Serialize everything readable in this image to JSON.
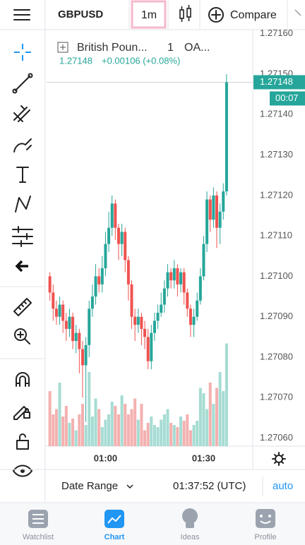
{
  "toolbar": {
    "symbol": "GBPUSD",
    "interval": "1m",
    "compare": "Compare"
  },
  "chart_data": {
    "type": "candlestick",
    "symbol_name": "British Poun...",
    "legend_interval": "1",
    "exchange": "OA...",
    "change": "+0.00106 (+0.08%)",
    "last_price": 1.27148,
    "countdown": "00:07",
    "up_color": "#26a69a",
    "down_color": "#ef5350",
    "up_volume_color": "#a6dcd3",
    "down_volume_color": "#f3b1b0",
    "grid": false,
    "x": [
      43,
      44,
      45,
      46,
      47,
      48,
      49,
      50,
      51,
      52,
      53,
      54,
      55,
      56,
      57,
      58,
      59,
      60,
      61,
      62,
      63,
      64,
      65,
      66,
      67,
      68,
      69,
      70,
      71,
      72,
      73,
      74,
      75,
      76,
      77,
      78,
      79,
      80,
      81,
      82,
      83,
      84,
      85,
      86,
      87,
      88,
      89,
      90,
      91,
      92,
      93,
      94,
      95,
      96,
      97
    ],
    "open": [
      1.271,
      1.27096,
      1.27092,
      1.2709,
      1.27093,
      1.27089,
      1.27087,
      1.2709,
      1.27084,
      1.27086,
      1.27082,
      1.27078,
      1.27083,
      1.27092,
      1.27095,
      1.271,
      1.27098,
      1.27102,
      1.27108,
      1.27112,
      1.27118,
      1.27112,
      1.27108,
      1.27111,
      1.27104,
      1.27098,
      1.2709,
      1.27088,
      1.2709,
      1.27087,
      1.27085,
      1.27079,
      1.27086,
      1.27089,
      1.27091,
      1.27093,
      1.27097,
      1.27101,
      1.27099,
      1.27102,
      1.27098,
      1.27101,
      1.27096,
      1.27092,
      1.27088,
      1.2709,
      1.27094,
      1.271,
      1.27108,
      1.27119,
      1.27114,
      1.2712,
      1.27112,
      1.27116,
      1.27121
    ],
    "high": [
      1.27101,
      1.27098,
      1.27094,
      1.27095,
      1.27094,
      1.27091,
      1.27092,
      1.27091,
      1.27088,
      1.27087,
      1.27084,
      1.27085,
      1.27094,
      1.27098,
      1.27103,
      1.27102,
      1.27105,
      1.27111,
      1.27116,
      1.2712,
      1.27119,
      1.27113,
      1.27113,
      1.27112,
      1.27105,
      1.27099,
      1.27092,
      1.27092,
      1.27091,
      1.27089,
      1.27087,
      1.27088,
      1.27091,
      1.27093,
      1.27096,
      1.27099,
      1.27103,
      1.27102,
      1.27104,
      1.27103,
      1.27102,
      1.27102,
      1.27097,
      1.27093,
      1.27092,
      1.27096,
      1.27102,
      1.2711,
      1.27121,
      1.2712,
      1.27122,
      1.27121,
      1.27118,
      1.27123,
      1.2715
    ],
    "low": [
      1.27094,
      1.27089,
      1.27088,
      1.27088,
      1.27086,
      1.27084,
      1.27085,
      1.27082,
      1.27081,
      1.27076,
      1.2707,
      1.27064,
      1.2708,
      1.2709,
      1.27093,
      1.27096,
      1.27096,
      1.271,
      1.27106,
      1.2711,
      1.27109,
      1.27104,
      1.27105,
      1.27101,
      1.27094,
      1.27087,
      1.27084,
      1.27086,
      1.27083,
      1.27082,
      1.27077,
      1.27077,
      1.27084,
      1.27087,
      1.2709,
      1.27091,
      1.27095,
      1.27097,
      1.27097,
      1.27095,
      1.27096,
      1.27093,
      1.2709,
      1.27085,
      1.27085,
      1.27089,
      1.27093,
      1.27099,
      1.27106,
      1.27111,
      1.27112,
      1.27107,
      1.27108,
      1.27114,
      1.2712
    ],
    "close": [
      1.27096,
      1.27092,
      1.2709,
      1.27093,
      1.27089,
      1.27087,
      1.2709,
      1.27084,
      1.27086,
      1.27082,
      1.27078,
      1.27083,
      1.27092,
      1.27095,
      1.271,
      1.27098,
      1.27102,
      1.27108,
      1.27112,
      1.27118,
      1.27112,
      1.27108,
      1.27111,
      1.27104,
      1.27098,
      1.2709,
      1.27088,
      1.2709,
      1.27087,
      1.27085,
      1.27079,
      1.27086,
      1.27089,
      1.27091,
      1.27093,
      1.27097,
      1.27101,
      1.27099,
      1.27102,
      1.27098,
      1.27101,
      1.27096,
      1.27092,
      1.27088,
      1.2709,
      1.27094,
      1.271,
      1.27108,
      1.27119,
      1.27114,
      1.2712,
      1.27112,
      1.27116,
      1.27121,
      1.27148
    ],
    "volume": [
      52,
      30,
      35,
      60,
      28,
      38,
      22,
      26,
      15,
      30,
      40,
      20,
      70,
      28,
      45,
      35,
      18,
      25,
      30,
      42,
      38,
      30,
      48,
      40,
      30,
      35,
      45,
      25,
      40,
      15,
      22,
      28,
      20,
      18,
      25,
      30,
      35,
      22,
      20,
      18,
      28,
      24,
      30,
      15,
      20,
      24,
      55,
      50,
      35,
      60,
      40,
      55,
      70,
      52,
      97
    ],
    "volume_ylim": [
      0,
      100
    ],
    "xlim": [
      42,
      105
    ],
    "xticks": [
      {
        "value": 60,
        "label": "01:00"
      },
      {
        "value": 90,
        "label": "01:30"
      }
    ],
    "ylim": [
      1.27058,
      1.27161
    ],
    "yticks": [
      {
        "value": 1.2706,
        "label": "1.27060"
      },
      {
        "value": 1.2707,
        "label": "1.27070"
      },
      {
        "value": 1.2708,
        "label": "1.27080"
      },
      {
        "value": 1.2709,
        "label": "1.27090"
      },
      {
        "value": 1.271,
        "label": "1.27100"
      },
      {
        "value": 1.2711,
        "label": "1.27110"
      },
      {
        "value": 1.2712,
        "label": "1.27120"
      },
      {
        "value": 1.2713,
        "label": "1.27130"
      },
      {
        "value": 1.2714,
        "label": "1.27140"
      },
      {
        "value": 1.2715,
        "label": "1.27150"
      },
      {
        "value": 1.2716,
        "label": "1.27160"
      }
    ]
  },
  "bottom_bar": {
    "date_range": "Date Range",
    "time": "01:37:52 (UTC)",
    "scale": "auto"
  },
  "tabs": [
    "Watchlist",
    "Chart",
    "Ideas",
    "Profile"
  ]
}
